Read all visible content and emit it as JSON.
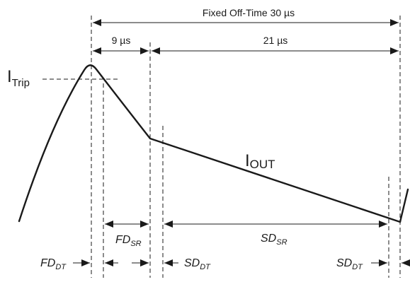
{
  "top": {
    "fixed_off_time": "Fixed Off-Time 30 µs",
    "fast_interval": "9 µs",
    "slow_interval": "21 µs"
  },
  "labels": {
    "trip_main": "I",
    "trip_sub": "Trip",
    "out_main": "I",
    "out_sub": "OUT"
  },
  "bottom": {
    "fd_sr_main": "FD",
    "fd_sr_sub": "SR",
    "sd_sr_main": "SD",
    "sd_sr_sub": "SR",
    "fd_dt_main": "FD",
    "fd_dt_sub": "DT",
    "sd_dt1_main": "SD",
    "sd_dt1_sub": "DT",
    "sd_dt2_main": "SD",
    "sd_dt2_sub": "DT"
  }
}
